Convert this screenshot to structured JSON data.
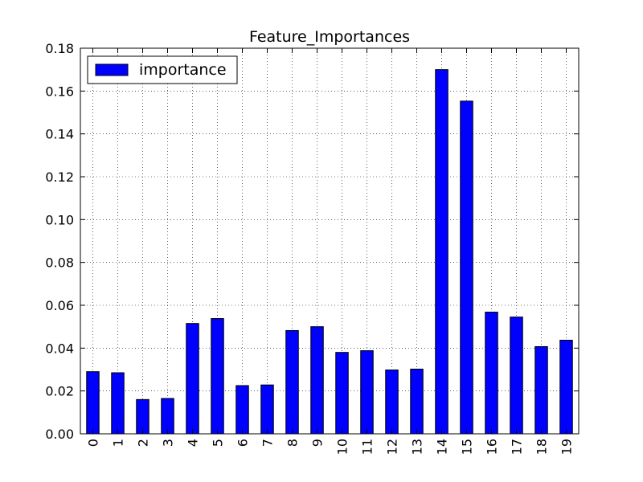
{
  "chart_data": {
    "type": "bar",
    "title": "Feature_Importances",
    "xlabel": "",
    "ylabel": "",
    "categories": [
      "0",
      "1",
      "2",
      "3",
      "4",
      "5",
      "6",
      "7",
      "8",
      "9",
      "10",
      "11",
      "12",
      "13",
      "14",
      "15",
      "16",
      "17",
      "18",
      "19"
    ],
    "series": [
      {
        "name": "importance",
        "color": "#0000ff",
        "values": [
          0.029,
          0.0285,
          0.016,
          0.0165,
          0.0515,
          0.0538,
          0.0225,
          0.0228,
          0.0482,
          0.05,
          0.038,
          0.0388,
          0.0298,
          0.0302,
          0.17,
          0.1553,
          0.0568,
          0.0545,
          0.0407,
          0.0437
        ]
      }
    ],
    "ylim": [
      0,
      0.18
    ],
    "yticks": [
      "0.00",
      "0.02",
      "0.04",
      "0.06",
      "0.08",
      "0.10",
      "0.12",
      "0.14",
      "0.16",
      "0.18"
    ],
    "ytick_values": [
      0,
      0.02,
      0.04,
      0.06,
      0.08,
      0.1,
      0.12,
      0.14,
      0.16,
      0.18
    ],
    "xtick_rotation": "vertical",
    "grid": true,
    "grid_style": "dotted",
    "legend": {
      "placement": "top-left",
      "entries": [
        "importance"
      ]
    }
  }
}
